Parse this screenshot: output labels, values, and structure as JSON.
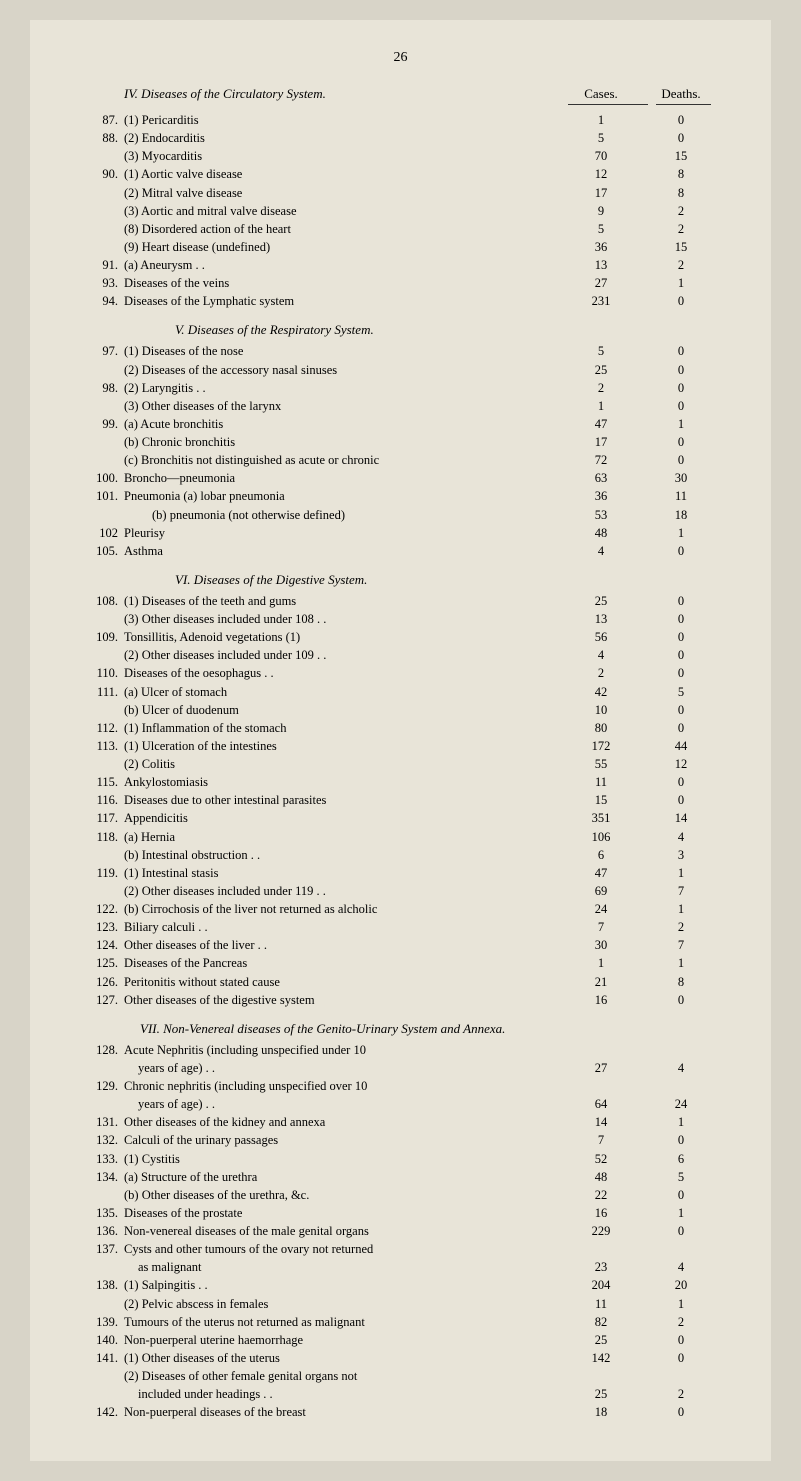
{
  "page_number": "26",
  "header": {
    "section_iv_title": "IV. Diseases of the Circulatory System.",
    "cases_label": "Cases.",
    "deaths_label": "Deaths."
  },
  "section_iv_rows": [
    {
      "num": "87.",
      "label": "(1) Pericarditis",
      "cases": "1",
      "deaths": "0",
      "indent": 1
    },
    {
      "num": "88.",
      "label": "(2) Endocarditis",
      "cases": "5",
      "deaths": "0",
      "indent": 1
    },
    {
      "num": "",
      "label": "(3) Myocarditis",
      "cases": "70",
      "deaths": "15",
      "indent": 1
    },
    {
      "num": "90.",
      "label": "(1) Aortic valve disease",
      "cases": "12",
      "deaths": "8",
      "indent": 1
    },
    {
      "num": "",
      "label": "(2) Mitral valve disease",
      "cases": "17",
      "deaths": "8",
      "indent": 1
    },
    {
      "num": "",
      "label": "(3) Aortic and mitral valve disease",
      "cases": "9",
      "deaths": "2",
      "indent": 1
    },
    {
      "num": "",
      "label": "(8) Disordered action of the heart",
      "cases": "5",
      "deaths": "2",
      "indent": 1
    },
    {
      "num": "",
      "label": "(9) Heart disease (undefined)",
      "cases": "36",
      "deaths": "15",
      "indent": 1
    },
    {
      "num": "91.",
      "label": "(a) Aneurysm  . .",
      "cases": "13",
      "deaths": "2",
      "indent": 1
    },
    {
      "num": "93.",
      "label": "Diseases of the veins",
      "cases": "27",
      "deaths": "1",
      "indent": 1
    },
    {
      "num": "94.",
      "label": "Diseases of the Lymphatic system",
      "cases": "231",
      "deaths": "0",
      "indent": 1
    }
  ],
  "section_v_title": "V. Diseases of the Respiratory System.",
  "section_v_rows": [
    {
      "num": "97.",
      "label": "(1) Diseases of the nose",
      "cases": "5",
      "deaths": "0",
      "indent": 1
    },
    {
      "num": "",
      "label": "(2) Diseases of the accessory nasal sinuses",
      "cases": "25",
      "deaths": "0",
      "indent": 1
    },
    {
      "num": "98.",
      "label": "(2) Laryngitis  . .",
      "cases": "2",
      "deaths": "0",
      "indent": 1
    },
    {
      "num": "",
      "label": "(3) Other diseases of the larynx",
      "cases": "1",
      "deaths": "0",
      "indent": 1
    },
    {
      "num": "99.",
      "label": "(a) Acute bronchitis",
      "cases": "47",
      "deaths": "1",
      "indent": 1
    },
    {
      "num": "",
      "label": "(b) Chronic bronchitis",
      "cases": "17",
      "deaths": "0",
      "indent": 1
    },
    {
      "num": "",
      "label": "(c) Bronchitis not distinguished as acute or chronic",
      "cases": "72",
      "deaths": "0",
      "indent": 1
    },
    {
      "num": "100.",
      "label": "Broncho—pneumonia",
      "cases": "63",
      "deaths": "30",
      "indent": 1
    },
    {
      "num": "101.",
      "label": "Pneumonia (a) lobar pneumonia",
      "cases": "36",
      "deaths": "11",
      "indent": 1
    },
    {
      "num": "",
      "label": "(b) pneumonia (not otherwise defined)",
      "cases": "53",
      "deaths": "18",
      "indent": 3
    },
    {
      "num": "102",
      "label": "Pleurisy",
      "cases": "48",
      "deaths": "1",
      "indent": 1
    },
    {
      "num": "105.",
      "label": "Asthma",
      "cases": "4",
      "deaths": "0",
      "indent": 1
    }
  ],
  "section_vi_title": "VI. Diseases of the Digestive System.",
  "section_vi_rows": [
    {
      "num": "108.",
      "label": "(1) Diseases of the teeth and gums",
      "cases": "25",
      "deaths": "0",
      "indent": 1
    },
    {
      "num": "",
      "label": "(3) Other diseases included under 108 . .",
      "cases": "13",
      "deaths": "0",
      "indent": 1
    },
    {
      "num": "109.",
      "label": "Tonsillitis, Adenoid vegetations (1)",
      "cases": "56",
      "deaths": "0",
      "indent": 1
    },
    {
      "num": "",
      "label": "(2) Other diseases included under 109 . .",
      "cases": "4",
      "deaths": "0",
      "indent": 1
    },
    {
      "num": "110.",
      "label": "Diseases of the oesophagus . .",
      "cases": "2",
      "deaths": "0",
      "indent": 1
    },
    {
      "num": "111.",
      "label": "(a) Ulcer of stomach",
      "cases": "42",
      "deaths": "5",
      "indent": 1
    },
    {
      "num": "",
      "label": "(b) Ulcer of duodenum",
      "cases": "10",
      "deaths": "0",
      "indent": 1
    },
    {
      "num": "112.",
      "label": "(1) Inflammation of the stomach",
      "cases": "80",
      "deaths": "0",
      "indent": 1
    },
    {
      "num": "113.",
      "label": "(1) Ulceration of the intestines",
      "cases": "172",
      "deaths": "44",
      "indent": 1
    },
    {
      "num": "",
      "label": "(2) Colitis",
      "cases": "55",
      "deaths": "12",
      "indent": 1
    },
    {
      "num": "115.",
      "label": "Ankylostomiasis",
      "cases": "11",
      "deaths": "0",
      "indent": 1
    },
    {
      "num": "116.",
      "label": "Diseases due to other intestinal parasites",
      "cases": "15",
      "deaths": "0",
      "indent": 1
    },
    {
      "num": "117.",
      "label": "Appendicitis",
      "cases": "351",
      "deaths": "14",
      "indent": 1
    },
    {
      "num": "118.",
      "label": "(a) Hernia",
      "cases": "106",
      "deaths": "4",
      "indent": 1
    },
    {
      "num": "",
      "label": "(b) Intestinal obstruction  . .",
      "cases": "6",
      "deaths": "3",
      "indent": 1
    },
    {
      "num": "119.",
      "label": "(1) Intestinal stasis",
      "cases": "47",
      "deaths": "1",
      "indent": 1
    },
    {
      "num": "",
      "label": "(2) Other diseases included under 119 . .",
      "cases": "69",
      "deaths": "7",
      "indent": 1
    },
    {
      "num": "122.",
      "label": "(b) Cirrochosis of the liver not returned as alcholic",
      "cases": "24",
      "deaths": "1",
      "indent": 1
    },
    {
      "num": "123.",
      "label": "Biliary calculi  . .",
      "cases": "7",
      "deaths": "2",
      "indent": 1
    },
    {
      "num": "124.",
      "label": "Other diseases of the liver  . .",
      "cases": "30",
      "deaths": "7",
      "indent": 1
    },
    {
      "num": "125.",
      "label": "Diseases of the Pancreas",
      "cases": "1",
      "deaths": "1",
      "indent": 1
    },
    {
      "num": "126.",
      "label": "Peritonitis without stated cause",
      "cases": "21",
      "deaths": "8",
      "indent": 1
    },
    {
      "num": "127.",
      "label": "Other diseases of the digestive system",
      "cases": "16",
      "deaths": "0",
      "indent": 1
    }
  ],
  "section_vii_title": "VII. Non-Venereal diseases of the Genito-Urinary System and Annexa.",
  "section_vii_rows": [
    {
      "num": "128.",
      "label": "Acute Nephritis (including unspecified under 10",
      "cases": "",
      "deaths": "",
      "indent": 1
    },
    {
      "num": "",
      "label": "years of age) . .",
      "cases": "27",
      "deaths": "4",
      "indent": 2
    },
    {
      "num": "129.",
      "label": "Chronic nephritis (including unspecified over 10",
      "cases": "",
      "deaths": "",
      "indent": 1
    },
    {
      "num": "",
      "label": "years of age) . .",
      "cases": "64",
      "deaths": "24",
      "indent": 2
    },
    {
      "num": "131.",
      "label": "Other diseases of the kidney and annexa",
      "cases": "14",
      "deaths": "1",
      "indent": 1
    },
    {
      "num": "132.",
      "label": "Calculi of the urinary passages",
      "cases": "7",
      "deaths": "0",
      "indent": 1
    },
    {
      "num": "133.",
      "label": "(1) Cystitis",
      "cases": "52",
      "deaths": "6",
      "indent": 1
    },
    {
      "num": "134.",
      "label": "(a) Structure of the urethra",
      "cases": "48",
      "deaths": "5",
      "indent": 1
    },
    {
      "num": "",
      "label": "(b) Other diseases of the urethra, &c.",
      "cases": "22",
      "deaths": "0",
      "indent": 1
    },
    {
      "num": "135.",
      "label": "Diseases of the prostate",
      "cases": "16",
      "deaths": "1",
      "indent": 1
    },
    {
      "num": "136.",
      "label": "Non-venereal diseases of the male genital organs",
      "cases": "229",
      "deaths": "0",
      "indent": 1
    },
    {
      "num": "137.",
      "label": "Cysts and other tumours of the ovary not returned",
      "cases": "",
      "deaths": "",
      "indent": 1
    },
    {
      "num": "",
      "label": "as malignant",
      "cases": "23",
      "deaths": "4",
      "indent": 2
    },
    {
      "num": "138.",
      "label": "(1) Salpingitis  . .",
      "cases": "204",
      "deaths": "20",
      "indent": 1
    },
    {
      "num": "",
      "label": "(2) Pelvic abscess in females",
      "cases": "11",
      "deaths": "1",
      "indent": 1
    },
    {
      "num": "139.",
      "label": "Tumours of the uterus not returned as malignant",
      "cases": "82",
      "deaths": "2",
      "indent": 1
    },
    {
      "num": "140.",
      "label": "Non-puerperal uterine haemorrhage",
      "cases": "25",
      "deaths": "0",
      "indent": 1
    },
    {
      "num": "141.",
      "label": "(1) Other diseases of the uterus",
      "cases": "142",
      "deaths": "0",
      "indent": 1
    },
    {
      "num": "",
      "label": "(2) Diseases of other female genital organs not",
      "cases": "",
      "deaths": "",
      "indent": 1
    },
    {
      "num": "",
      "label": "included under headings . .",
      "cases": "25",
      "deaths": "2",
      "indent": 2
    },
    {
      "num": "142.",
      "label": "Non-puerperal diseases of the breast",
      "cases": "18",
      "deaths": "0",
      "indent": 1
    }
  ],
  "style": {
    "background_color": "#e8e4d8",
    "outer_background": "#d8d4c8",
    "text_color": "#1a1a1a",
    "font_size_body": 12.5,
    "font_size_header": 13,
    "line_height": 1.45
  }
}
